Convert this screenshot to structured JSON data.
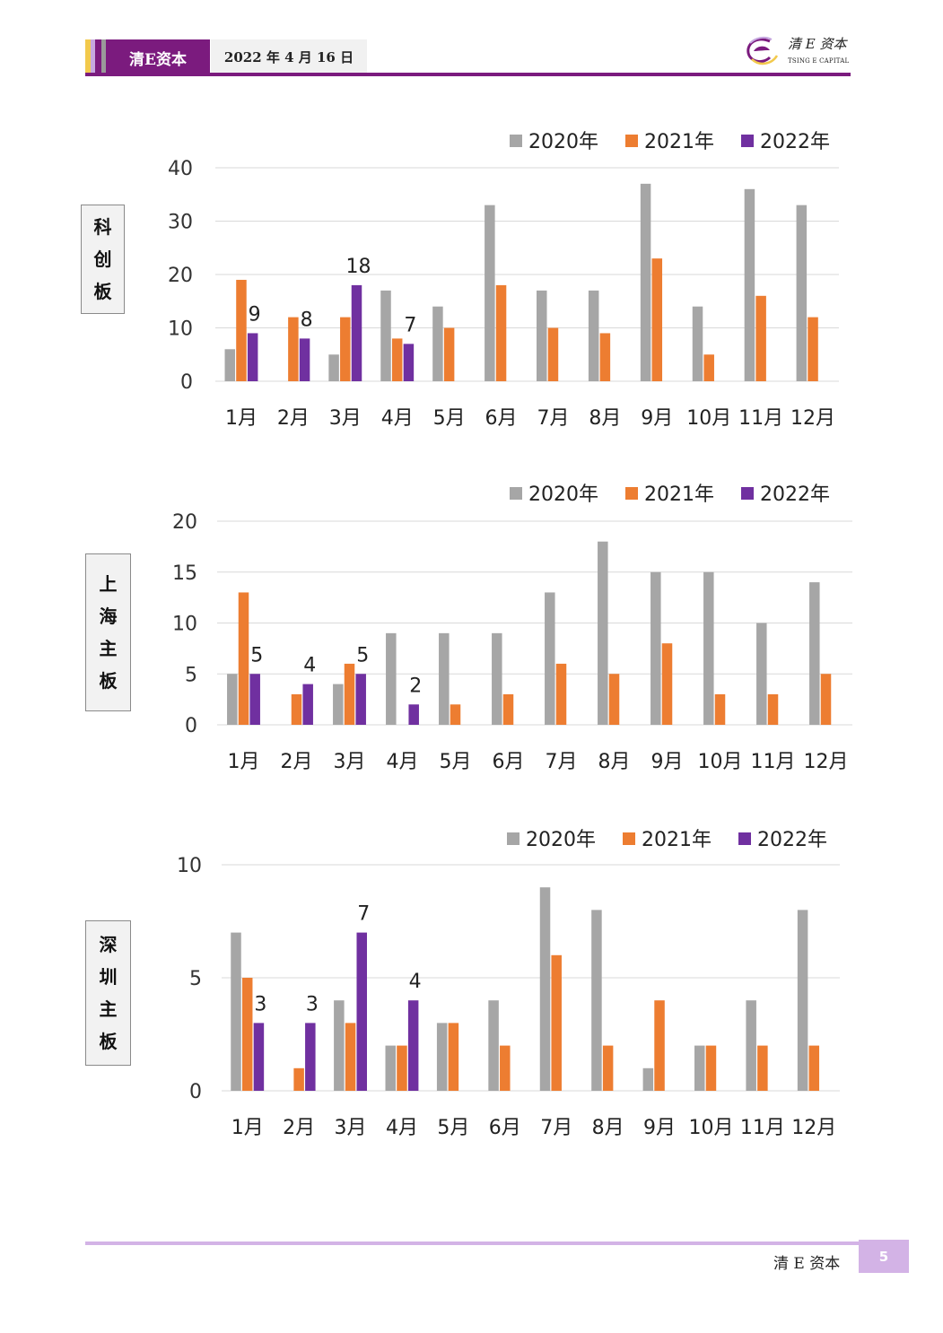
{
  "header": {
    "brand": "清E资本",
    "date": "2022 年 4 月 16 日",
    "logo_cn": "清 E 资本",
    "logo_en": "TSING E CAPITAL"
  },
  "footer": {
    "brand": "清 E 资本",
    "page": "5"
  },
  "colors": {
    "brand_purple": "#7b1b7e",
    "series_2020": "#a6a6a6",
    "series_2021": "#ed7d31",
    "series_2022": "#7030a0"
  },
  "chart_data": [
    {
      "type": "bar",
      "panel_label": "科创板",
      "categories": [
        "1月",
        "2月",
        "3月",
        "4月",
        "5月",
        "6月",
        "7月",
        "8月",
        "9月",
        "10月",
        "11月",
        "12月"
      ],
      "series": [
        {
          "name": "2020年",
          "values": [
            6,
            0,
            5,
            17,
            14,
            33,
            17,
            17,
            37,
            14,
            36,
            33
          ]
        },
        {
          "name": "2021年",
          "values": [
            19,
            12,
            12,
            8,
            10,
            18,
            10,
            9,
            23,
            5,
            16,
            12
          ]
        },
        {
          "name": "2022年",
          "values": [
            9,
            8,
            18,
            7,
            null,
            null,
            null,
            null,
            null,
            null,
            null,
            null
          ]
        }
      ],
      "data_labels_series": "2022年",
      "ylim": [
        0,
        40
      ],
      "yticks": [
        0,
        10,
        20,
        30,
        40
      ],
      "grid": true,
      "legend": "top-right"
    },
    {
      "type": "bar",
      "panel_label": "上海主板",
      "categories": [
        "1月",
        "2月",
        "3月",
        "4月",
        "5月",
        "6月",
        "7月",
        "8月",
        "9月",
        "10月",
        "11月",
        "12月"
      ],
      "series": [
        {
          "name": "2020年",
          "values": [
            5,
            0,
            4,
            9,
            9,
            9,
            13,
            18,
            15,
            15,
            10,
            14
          ]
        },
        {
          "name": "2021年",
          "values": [
            13,
            3,
            6,
            0,
            2,
            3,
            6,
            5,
            8,
            3,
            3,
            5
          ]
        },
        {
          "name": "2022年",
          "values": [
            5,
            4,
            5,
            2,
            null,
            null,
            null,
            null,
            null,
            null,
            null,
            null
          ]
        }
      ],
      "data_labels_series": "2022年",
      "ylim": [
        0,
        20
      ],
      "yticks": [
        0,
        5,
        10,
        15,
        20
      ],
      "grid": true,
      "legend": "top-right"
    },
    {
      "type": "bar",
      "panel_label": "深圳主板",
      "categories": [
        "1月",
        "2月",
        "3月",
        "4月",
        "5月",
        "6月",
        "7月",
        "8月",
        "9月",
        "10月",
        "11月",
        "12月"
      ],
      "series": [
        {
          "name": "2020年",
          "values": [
            7,
            0,
            4,
            2,
            3,
            4,
            9,
            8,
            1,
            2,
            4,
            8
          ]
        },
        {
          "name": "2021年",
          "values": [
            5,
            1,
            3,
            2,
            3,
            2,
            6,
            2,
            4,
            2,
            2,
            2
          ]
        },
        {
          "name": "2022年",
          "values": [
            3,
            3,
            7,
            4,
            null,
            null,
            null,
            null,
            null,
            null,
            null,
            null
          ]
        }
      ],
      "data_labels_series": "2022年",
      "ylim": [
        0,
        10
      ],
      "yticks": [
        0,
        5,
        10
      ],
      "grid": true,
      "legend": "top-right"
    }
  ]
}
